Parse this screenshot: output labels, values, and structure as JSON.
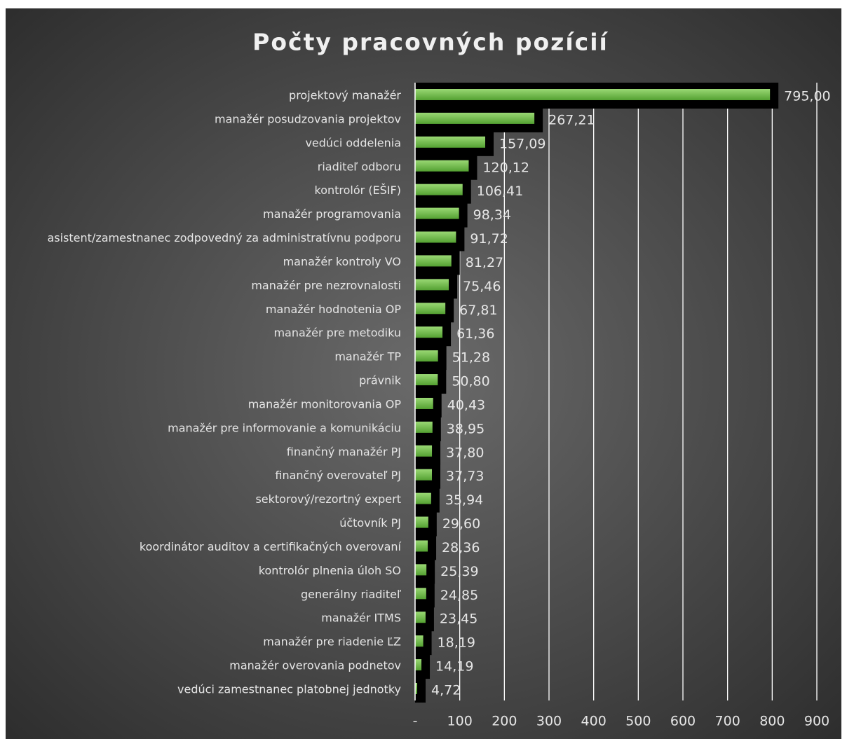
{
  "chart_data": {
    "type": "hbar",
    "title": "Počty pracovných pozícií",
    "categories": [
      "projektový manažér",
      "manažér posudzovania projektov",
      "vedúci oddelenia",
      "riaditeľ odboru",
      "kontrolór (EŠIF)",
      "manažér programovania",
      "asistent/zamestnanec zodpovedný za administratívnu podporu",
      "manažér kontroly VO",
      "manažér pre nezrovnalosti",
      "manažér hodnotenia OP",
      "manažér pre metodiku",
      "manažér TP",
      "právnik",
      "manažér monitorovania OP",
      "manažér pre informovanie a komunikáciu",
      "finančný manažér PJ",
      "finančný overovateľ PJ",
      "sektorový/rezortný expert",
      "účtovník PJ",
      "koordinátor auditov a certifikačných overovaní",
      "kontrolór plnenia úloh SO",
      "generálny riaditeľ",
      "manažér ITMS",
      "manažér pre riadenie ĽZ",
      "manažér overovania podnetov",
      "vedúci zamestnanec platobnej jednotky"
    ],
    "values": [
      795.0,
      267.21,
      157.09,
      120.12,
      106.41,
      98.34,
      91.72,
      81.27,
      75.46,
      67.81,
      61.36,
      51.28,
      50.8,
      40.43,
      38.95,
      37.8,
      37.73,
      35.94,
      29.6,
      28.36,
      25.39,
      24.85,
      23.45,
      18.19,
      14.19,
      4.72
    ],
    "value_labels": [
      "795,00",
      "267,21",
      "157,09",
      "120,12",
      "106,41",
      "98,34",
      "91,72",
      "81,27",
      "75,46",
      "67,81",
      "61,36",
      "51,28",
      "50,80",
      "40,43",
      "38,95",
      "37,80",
      "37,73",
      "35,94",
      "29,60",
      "28,36",
      "25,39",
      "24,85",
      "23,45",
      "18,19",
      "14,19",
      "4,72"
    ],
    "color": "#6cbf45",
    "xlim": [
      0,
      900
    ],
    "xticks": [
      {
        "value": 0,
        "label": "-"
      },
      100,
      200,
      300,
      400,
      500,
      600,
      700,
      800,
      900
    ],
    "grid": true
  }
}
